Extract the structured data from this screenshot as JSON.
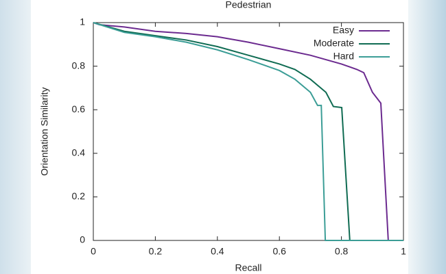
{
  "chart_data": {
    "type": "line",
    "title": "Pedestrian",
    "x_label": "Recall",
    "y_label": "Orientation Similarity",
    "xlim": [
      0,
      1
    ],
    "ylim": [
      0,
      1
    ],
    "xticks": [
      0,
      0.2,
      0.4,
      0.6,
      0.8,
      1
    ],
    "yticks": [
      0,
      0.2,
      0.4,
      0.6,
      0.8,
      1
    ],
    "legend": "upper right",
    "series": [
      {
        "name": "Easy",
        "color": "#6b2a8f",
        "x": [
          0,
          0.02,
          0.1,
          0.2,
          0.3,
          0.4,
          0.5,
          0.6,
          0.7,
          0.8,
          0.85,
          0.872,
          0.9,
          0.927,
          0.951,
          1
        ],
        "values": [
          1,
          0.99,
          0.98,
          0.96,
          0.95,
          0.935,
          0.91,
          0.88,
          0.85,
          0.81,
          0.785,
          0.77,
          0.68,
          0.63,
          0,
          0
        ]
      },
      {
        "name": "Moderate",
        "color": "#0f6b52",
        "x": [
          0,
          0.1,
          0.2,
          0.3,
          0.4,
          0.5,
          0.6,
          0.65,
          0.7,
          0.75,
          0.774,
          0.801,
          0.827,
          1
        ],
        "values": [
          1,
          0.96,
          0.94,
          0.92,
          0.89,
          0.85,
          0.81,
          0.785,
          0.74,
          0.68,
          0.615,
          0.61,
          0,
          0
        ]
      },
      {
        "name": "Hard",
        "color": "#3b9d96",
        "x": [
          0,
          0.1,
          0.2,
          0.3,
          0.4,
          0.5,
          0.6,
          0.65,
          0.7,
          0.723,
          0.735,
          0.748,
          1
        ],
        "values": [
          1,
          0.955,
          0.935,
          0.91,
          0.875,
          0.83,
          0.78,
          0.74,
          0.68,
          0.62,
          0.62,
          0,
          0
        ]
      }
    ]
  }
}
